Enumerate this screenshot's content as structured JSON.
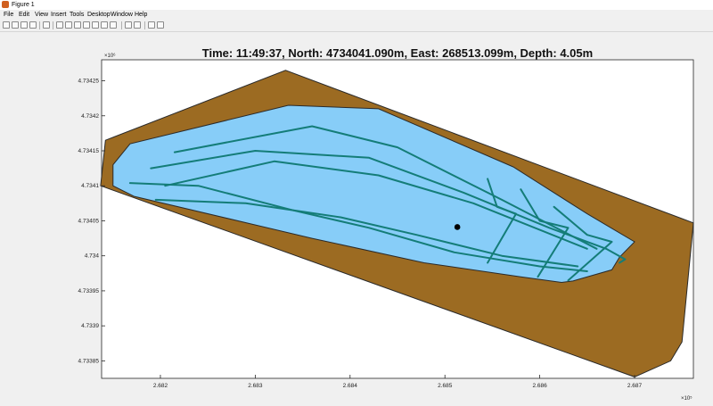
{
  "window": {
    "title": "Figure 1"
  },
  "menu": [
    "File",
    "Edit",
    "View",
    "Insert",
    "Tools",
    "Desktop",
    "Window",
    "Help"
  ],
  "toolbar": [
    "new-figure-icon",
    "open-file-icon",
    "save-icon",
    "print-icon",
    "pointer-icon",
    "zoom-in-icon",
    "zoom-out-icon",
    "pan-icon",
    "rotate-icon",
    "data-cursor-icon",
    "brush-icon",
    "link-icon",
    "colorbar-icon",
    "legend-icon",
    "hide-plot-tools-icon",
    "show-plot-tools-icon"
  ],
  "plot": {
    "title": "Time: 11:49:37,  North: 4734041.090m,  East: 268513.099m,  Depth: 4.05m",
    "y_exponent": "×10⁶",
    "x_exponent": "×10⁵",
    "y_tick_labels": [
      "4.73425",
      "4.7342",
      "4.73415",
      "4.7341",
      "4.73405",
      "4.734",
      "4.73395",
      "4.7339",
      "4.73385"
    ],
    "x_tick_labels": [
      "2.682",
      "2.683",
      "2.684",
      "2.685",
      "2.686",
      "2.687"
    ]
  },
  "colors": {
    "land": "#9c6b22",
    "water": "#87cdf8",
    "track": "#147d78",
    "marker": "#000000"
  },
  "chart_data": {
    "type": "line",
    "ylim": [
      4733825,
      4734280
    ],
    "xlim": [
      268138,
      268762
    ],
    "y_ticks": [
      4734250,
      4734200,
      4734150,
      4734100,
      4734050,
      4734000,
      4733950,
      4733900,
      4733850
    ],
    "x_ticks": [
      268200,
      268300,
      268400,
      268500,
      268600,
      268700
    ],
    "grid": false,
    "series": [
      {
        "role": "shore",
        "x": [
          268137,
          268142,
          268332,
          268762,
          268750,
          268738,
          268700,
          268137
        ],
        "y": [
          4734100,
          4734165,
          4734265,
          4734047,
          4733877,
          4733850,
          4733827,
          4734100
        ]
      },
      {
        "role": "lake",
        "x": [
          268150,
          268168,
          268335,
          268430,
          268572,
          268650,
          268700,
          268684,
          268676,
          268635,
          268623,
          268580,
          268478,
          268360,
          268172,
          268150,
          268150
        ],
        "y": [
          4734130,
          4734160,
          4734215,
          4734210,
          4734127,
          4734060,
          4734020,
          4733998,
          4733980,
          4733964,
          4733962,
          4733970,
          4733990,
          4734025,
          4734085,
          4734100,
          4734130
        ]
      },
      {
        "role": "track",
        "x": [
          268190,
          268300,
          268420,
          268520,
          268610,
          268670,
          268690,
          268684
        ],
        "y": [
          4734125,
          4734150,
          4734140,
          4734090,
          4734040,
          4734010,
          4733995,
          4733990
        ]
      },
      {
        "role": "track",
        "x": [
          268215,
          268360,
          268450,
          268560,
          268660
        ],
        "y": [
          4734148,
          4734185,
          4734155,
          4734080,
          4734010
        ]
      },
      {
        "role": "track",
        "x": [
          268205,
          268320,
          268430,
          268530,
          268650
        ],
        "y": [
          4734100,
          4734135,
          4734115,
          4734075,
          4734010
        ]
      },
      {
        "role": "track",
        "x": [
          268195,
          268290,
          268390,
          268470,
          268560,
          268640
        ],
        "y": [
          4734080,
          4734075,
          4734055,
          4734030,
          4734000,
          4733985
        ]
      },
      {
        "role": "track",
        "x": [
          268168,
          268240,
          268340,
          268420,
          268510,
          268600,
          268650
        ],
        "y": [
          4734104,
          4734100,
          4734065,
          4734040,
          4734005,
          4733985,
          4733978
        ]
      },
      {
        "role": "track",
        "x": [
          268545,
          268555,
          268575,
          268545
        ],
        "y": [
          4734110,
          4734070,
          4734060,
          4733990
        ]
      },
      {
        "role": "track",
        "x": [
          268580,
          268600,
          268630,
          268598
        ],
        "y": [
          4734095,
          4734050,
          4734040,
          4733970
        ]
      },
      {
        "role": "track",
        "x": [
          268615,
          268650,
          268676,
          268630
        ],
        "y": [
          4734070,
          4734030,
          4734020,
          4733965
        ]
      }
    ],
    "current_position": {
      "x": 268513.099,
      "y": 4734041.09
    }
  }
}
